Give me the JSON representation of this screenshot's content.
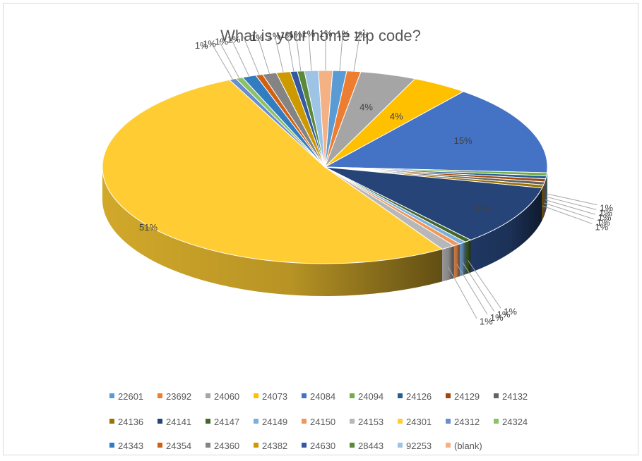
{
  "chart_data": {
    "type": "pie",
    "subtype": "3d-pie",
    "title": "What is your home zip code?",
    "legend_position": "bottom",
    "slices": [
      {
        "label": "22601",
        "value": 1,
        "data_label": "1%",
        "color": "#5b9bd5"
      },
      {
        "label": "23692",
        "value": 1,
        "data_label": "1%",
        "color": "#ed7d31"
      },
      {
        "label": "24060",
        "value": 4,
        "data_label": "4%",
        "color": "#a5a5a5"
      },
      {
        "label": "24073",
        "value": 4,
        "data_label": "4%",
        "color": "#ffc000"
      },
      {
        "label": "24084",
        "value": 15,
        "data_label": "15%",
        "color": "#4472c4"
      },
      {
        "label": "24094",
        "value": 0.5,
        "data_label": "1%",
        "color": "#70ad47"
      },
      {
        "label": "24126",
        "value": 0.5,
        "data_label": "1%",
        "color": "#255e91"
      },
      {
        "label": "24129",
        "value": 0.5,
        "data_label": "1%",
        "color": "#9e480e"
      },
      {
        "label": "24132",
        "value": 0.5,
        "data_label": "1%",
        "color": "#636363"
      },
      {
        "label": "24136",
        "value": 0.5,
        "data_label": "1%",
        "color": "#997300"
      },
      {
        "label": "24141",
        "value": 10,
        "data_label": "10%",
        "color": "#264478"
      },
      {
        "label": "24147",
        "value": 0.5,
        "data_label": "1%",
        "color": "#43682b"
      },
      {
        "label": "24149",
        "value": 0.5,
        "data_label": "1%",
        "color": "#7cafdd"
      },
      {
        "label": "24150",
        "value": 0.5,
        "data_label": "1%",
        "color": "#f1975a"
      },
      {
        "label": "24153",
        "value": 1,
        "data_label": "1%",
        "color": "#b7b7b7"
      },
      {
        "label": "24301",
        "value": 51,
        "data_label": "51%",
        "color": "#ffcd33"
      },
      {
        "label": "24312",
        "value": 0.5,
        "data_label": "1%",
        "color": "#698ed0"
      },
      {
        "label": "24324",
        "value": 0.5,
        "data_label": "1%",
        "color": "#8cc168"
      },
      {
        "label": "24343",
        "value": 1,
        "data_label": "1%",
        "color": "#327dc2"
      },
      {
        "label": "24354",
        "value": 0.5,
        "data_label": "1%",
        "color": "#d26012"
      },
      {
        "label": "24360",
        "value": 1,
        "data_label": "1%",
        "color": "#848484"
      },
      {
        "label": "24382",
        "value": 1,
        "data_label": "1%",
        "color": "#cc9a00"
      },
      {
        "label": "24630",
        "value": 0.5,
        "data_label": "1%",
        "color": "#335aa1"
      },
      {
        "label": "28443",
        "value": 0.5,
        "data_label": "1%",
        "color": "#5a8a39"
      },
      {
        "label": "92253",
        "value": 1,
        "data_label": "1%",
        "color": "#9dc3e6"
      },
      {
        "label": "(blank)",
        "value": 1,
        "data_label": "1%",
        "color": "#f4b183"
      }
    ]
  }
}
